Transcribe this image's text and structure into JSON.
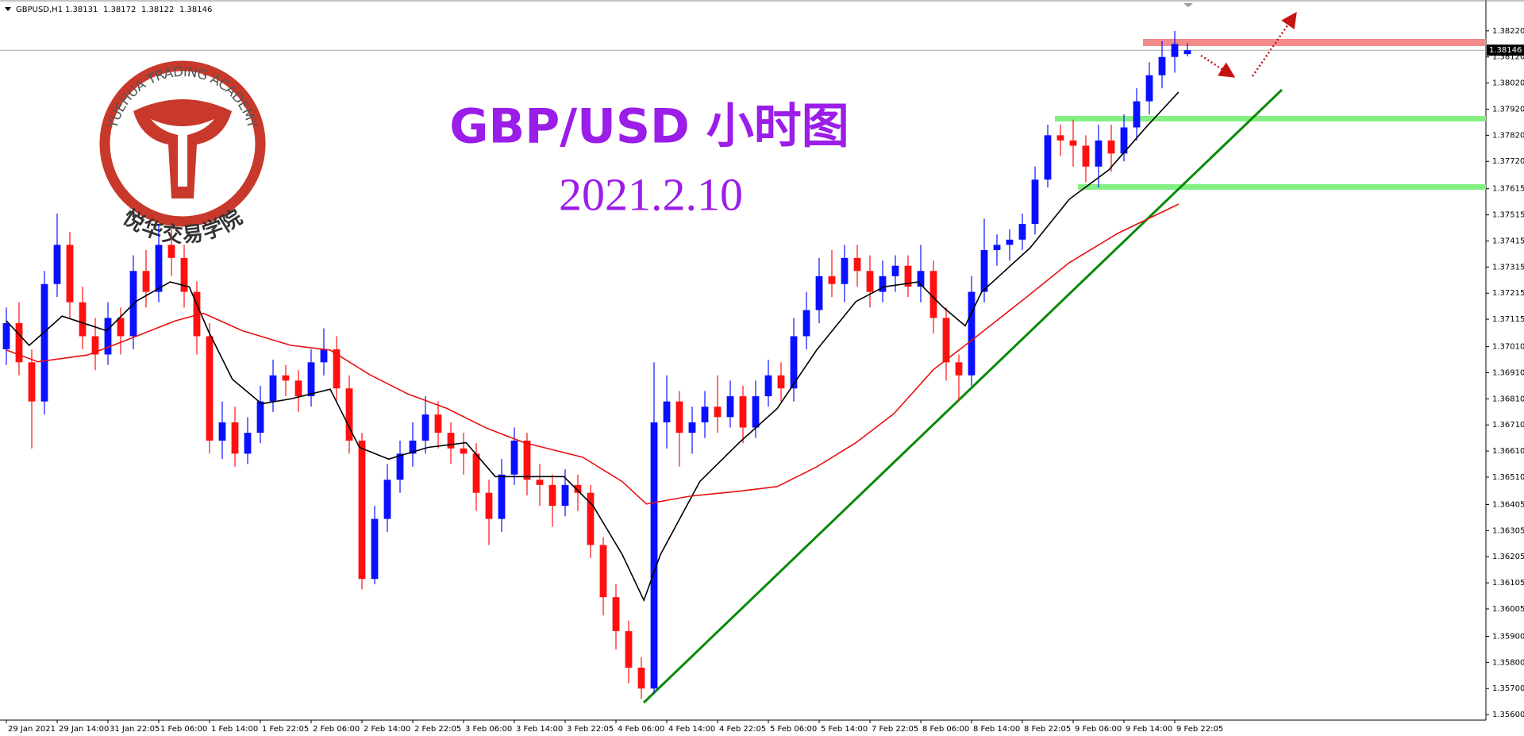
{
  "header": {
    "symbol": "GBPUSD,H1",
    "ohlc": [
      1.38131,
      1.38172,
      1.38122,
      1.38146
    ]
  },
  "logo": {
    "text": "YUEHUA TRADING ACADEMY",
    "subtext": "悦华交易学院"
  },
  "chart_data": {
    "type": "candlestick",
    "title": "GBP/USD 小时图",
    "subtitle": "2021.2.10",
    "up_color": "#0a10ff",
    "down_color": "#ff1010",
    "open": [
      1.37,
      1.371,
      1.3695,
      1.368,
      1.3725,
      1.374,
      1.3718,
      1.3705,
      1.3698,
      1.3712,
      1.3705,
      1.373,
      1.3722,
      1.374,
      1.3735,
      1.3722,
      1.3705,
      1.3665,
      1.3672,
      1.366,
      1.3668,
      1.368,
      1.369,
      1.3688,
      1.3682,
      1.3695,
      1.37,
      1.3685,
      1.3665,
      1.3612,
      1.3635,
      1.365,
      1.366,
      1.3665,
      1.3675,
      1.3668,
      1.3662,
      1.366,
      1.3645,
      1.3635,
      1.3652,
      1.3665,
      1.365,
      1.3648,
      1.364,
      1.3648,
      1.3645,
      1.3625,
      1.3605,
      1.3592,
      1.3578,
      1.357,
      1.3672,
      1.368,
      1.3668,
      1.3672,
      1.3678,
      1.3674,
      1.3682,
      1.367,
      1.3682,
      1.369,
      1.3685,
      1.3705,
      1.3715,
      1.3728,
      1.3725,
      1.3735,
      1.373,
      1.3722,
      1.3728,
      1.3732,
      1.3724,
      1.373,
      1.3712,
      1.3695,
      1.369,
      1.3722,
      1.3738,
      1.374,
      1.3742,
      1.3748,
      1.3765,
      1.3782,
      1.378,
      1.3778,
      1.377,
      1.378,
      1.3775,
      1.3785,
      1.3795,
      1.3805,
      1.3812,
      1.38131
    ],
    "high": [
      1.3716,
      1.3718,
      1.37,
      1.373,
      1.3752,
      1.3745,
      1.3724,
      1.3712,
      1.3718,
      1.3716,
      1.3736,
      1.3738,
      1.3748,
      1.3746,
      1.374,
      1.3726,
      1.371,
      1.368,
      1.3678,
      1.3674,
      1.3686,
      1.3696,
      1.3694,
      1.3692,
      1.37,
      1.3708,
      1.3705,
      1.369,
      1.3668,
      1.364,
      1.3656,
      1.3665,
      1.3672,
      1.3682,
      1.368,
      1.3672,
      1.3668,
      1.3664,
      1.365,
      1.3658,
      1.367,
      1.3668,
      1.3656,
      1.3652,
      1.3654,
      1.3652,
      1.3648,
      1.3628,
      1.361,
      1.3596,
      1.3582,
      1.3695,
      1.369,
      1.3684,
      1.3678,
      1.3684,
      1.369,
      1.3688,
      1.3686,
      1.3688,
      1.3696,
      1.3695,
      1.3712,
      1.3722,
      1.3735,
      1.3738,
      1.374,
      1.374,
      1.3736,
      1.3734,
      1.3736,
      1.3736,
      1.374,
      1.3734,
      1.3716,
      1.3698,
      1.3728,
      1.375,
      1.3744,
      1.3746,
      1.3752,
      1.377,
      1.3786,
      1.3786,
      1.3788,
      1.3782,
      1.3786,
      1.3786,
      1.379,
      1.38,
      1.381,
      1.3818,
      1.3822,
      1.38172
    ],
    "low": [
      1.3694,
      1.369,
      1.3662,
      1.3675,
      1.372,
      1.3712,
      1.37,
      1.3692,
      1.3694,
      1.3698,
      1.37,
      1.3716,
      1.3718,
      1.3728,
      1.3716,
      1.3698,
      1.366,
      1.3658,
      1.3655,
      1.3656,
      1.3664,
      1.3676,
      1.3682,
      1.3676,
      1.3678,
      1.369,
      1.368,
      1.366,
      1.3608,
      1.361,
      1.363,
      1.3645,
      1.3655,
      1.366,
      1.3662,
      1.3656,
      1.3652,
      1.3638,
      1.3625,
      1.363,
      1.3648,
      1.3644,
      1.364,
      1.3632,
      1.3636,
      1.3638,
      1.362,
      1.3598,
      1.3585,
      1.3572,
      1.3566,
      1.3568,
      1.3662,
      1.3655,
      1.366,
      1.3666,
      1.3668,
      1.367,
      1.3664,
      1.3666,
      1.3678,
      1.368,
      1.368,
      1.37,
      1.371,
      1.372,
      1.3718,
      1.3724,
      1.3716,
      1.3718,
      1.3722,
      1.372,
      1.3718,
      1.3706,
      1.3688,
      1.368,
      1.3686,
      1.3718,
      1.3732,
      1.3734,
      1.3738,
      1.3744,
      1.3762,
      1.3774,
      1.377,
      1.3764,
      1.3762,
      1.3768,
      1.3772,
      1.378,
      1.379,
      1.38,
      1.3806,
      1.38122
    ],
    "close": [
      1.371,
      1.3695,
      1.368,
      1.3725,
      1.374,
      1.3718,
      1.3705,
      1.3698,
      1.3712,
      1.3705,
      1.373,
      1.3722,
      1.374,
      1.3735,
      1.3722,
      1.3705,
      1.3665,
      1.3672,
      1.366,
      1.3668,
      1.368,
      1.369,
      1.3688,
      1.3682,
      1.3695,
      1.37,
      1.3685,
      1.3665,
      1.3612,
      1.3635,
      1.365,
      1.366,
      1.3665,
      1.3675,
      1.3668,
      1.3662,
      1.366,
      1.3645,
      1.3635,
      1.3652,
      1.3665,
      1.365,
      1.3648,
      1.364,
      1.3648,
      1.3645,
      1.3625,
      1.3605,
      1.3592,
      1.3578,
      1.357,
      1.3672,
      1.368,
      1.3668,
      1.3672,
      1.3678,
      1.3674,
      1.3682,
      1.367,
      1.3682,
      1.369,
      1.3685,
      1.3705,
      1.3715,
      1.3728,
      1.3725,
      1.3735,
      1.373,
      1.3722,
      1.3728,
      1.3732,
      1.3724,
      1.373,
      1.3712,
      1.3695,
      1.369,
      1.3722,
      1.3738,
      1.374,
      1.3742,
      1.3748,
      1.3765,
      1.3782,
      1.378,
      1.3778,
      1.377,
      1.378,
      1.3775,
      1.3785,
      1.3795,
      1.3805,
      1.3812,
      1.3817,
      1.38146
    ],
    "lines": [
      {
        "color": "#000000",
        "x": [
          0,
          1.8,
          4.4,
          7.9,
          10.2,
          12.9,
          14.4,
          15.9,
          17.8,
          20.1,
          22.4,
          25.5,
          27.8,
          30.1,
          33.2,
          36.2,
          38.5,
          40.8,
          43.9,
          46.2,
          48.5,
          50.2,
          51.5,
          54.6,
          57.7,
          60.7,
          63.8,
          66.9,
          69.1,
          71.8,
          73.7,
          75.5,
          76.8,
          80.6,
          83.7,
          86.8,
          89.8,
          92.3
        ],
        "values": [
          1.37109,
          1.37015,
          1.37127,
          1.37071,
          1.37183,
          1.37258,
          1.37239,
          1.37071,
          1.36885,
          1.36791,
          1.3681,
          1.36847,
          1.36624,
          1.36579,
          1.36624,
          1.36642,
          1.36512,
          1.36512,
          1.36512,
          1.364,
          1.36213,
          1.36038,
          1.36213,
          1.36493,
          1.36642,
          1.36773,
          1.36997,
          1.37183,
          1.37239,
          1.37258,
          1.37164,
          1.3709,
          1.3722,
          1.37388,
          1.37575,
          1.37687,
          1.37854,
          1.37985
        ]
      },
      {
        "color": "#e81010",
        "x": [
          0,
          2.5,
          6.4,
          9.4,
          13.3,
          15.5,
          18.6,
          22.4,
          25.5,
          28.6,
          31.6,
          34.7,
          37.8,
          40.8,
          45.4,
          48.5,
          50.4,
          53.8,
          57.7,
          60.7,
          63.8,
          66.9,
          69.9,
          73.0,
          76.0,
          79.9,
          83.7,
          87.5,
          92.3
        ],
        "values": [
          1.36997,
          1.36952,
          1.36978,
          1.37034,
          1.37109,
          1.37138,
          1.37071,
          1.37015,
          1.36997,
          1.36903,
          1.36829,
          1.36773,
          1.36698,
          1.36642,
          1.36586,
          1.36493,
          1.36407,
          1.36437,
          1.36456,
          1.36474,
          1.36549,
          1.36642,
          1.36754,
          1.36922,
          1.37034,
          1.37183,
          1.37332,
          1.37444,
          1.37556
        ]
      }
    ],
    "last_price": 1.38146,
    "xlim": [
      -0.5,
      116.5
    ],
    "ylim": [
      1.35579,
      1.3832
    ],
    "grid": false,
    "xticks": [
      {
        "value": 0,
        "label": "29 Jan 2021"
      },
      {
        "value": 4,
        "label": "29 Jan 14:00"
      },
      {
        "value": 8,
        "label": "31 Jan 22:05"
      },
      {
        "value": 12,
        "label": "1 Feb 06:00"
      },
      {
        "value": 16,
        "label": "1 Feb 14:00"
      },
      {
        "value": 20,
        "label": "1 Feb 22:05"
      },
      {
        "value": 24,
        "label": "2 Feb 06:00"
      },
      {
        "value": 28,
        "label": "2 Feb 14:00"
      },
      {
        "value": 32,
        "label": "2 Feb 22:05"
      },
      {
        "value": 36,
        "label": "3 Feb 06:00"
      },
      {
        "value": 40,
        "label": "3 Feb 14:00"
      },
      {
        "value": 44,
        "label": "3 Feb 22:05"
      },
      {
        "value": 48,
        "label": "4 Feb 06:00"
      },
      {
        "value": 52,
        "label": "4 Feb 14:00"
      },
      {
        "value": 56,
        "label": "4 Feb 22:05"
      },
      {
        "value": 60,
        "label": "5 Feb 06:00"
      },
      {
        "value": 64,
        "label": "5 Feb 14:00"
      },
      {
        "value": 68,
        "label": "7 Feb 22:05"
      },
      {
        "value": 72,
        "label": "8 Feb 06:00"
      },
      {
        "value": 76,
        "label": "8 Feb 14:00"
      },
      {
        "value": 80,
        "label": "8 Feb 22:05"
      },
      {
        "value": 84,
        "label": "9 Feb 06:00"
      },
      {
        "value": 88,
        "label": "9 Feb 14:00"
      },
      {
        "value": 92,
        "label": "9 Feb 22:05"
      }
    ],
    "yticks": [
      {
        "value": 1.3822,
        "label": "1.38220"
      },
      {
        "value": 1.3812,
        "label": "1.38120"
      },
      {
        "value": 1.3802,
        "label": "1.38020"
      },
      {
        "value": 1.3792,
        "label": "1.37920"
      },
      {
        "value": 1.3782,
        "label": "1.37820"
      },
      {
        "value": 1.3772,
        "label": "1.37720"
      },
      1.37615,
      1.37515,
      1.37415,
      1.37315,
      1.37215,
      1.37115,
      {
        "value": 1.3701,
        "label": "1.37010"
      },
      {
        "value": 1.3691,
        "label": "1.36910"
      },
      {
        "value": 1.3681,
        "label": "1.36810"
      },
      {
        "value": 1.3671,
        "label": "1.36710"
      },
      {
        "value": 1.3661,
        "label": "1.36610"
      },
      {
        "value": 1.3651,
        "label": "1.36510"
      },
      1.36405,
      1.36305,
      1.36205,
      1.36105,
      1.36005,
      {
        "value": 1.359,
        "label": "1.35900"
      },
      {
        "value": 1.358,
        "label": "1.35800"
      },
      {
        "value": 1.357,
        "label": "1.35700"
      },
      {
        "value": 1.356,
        "label": "1.35600"
      }
    ]
  }
}
